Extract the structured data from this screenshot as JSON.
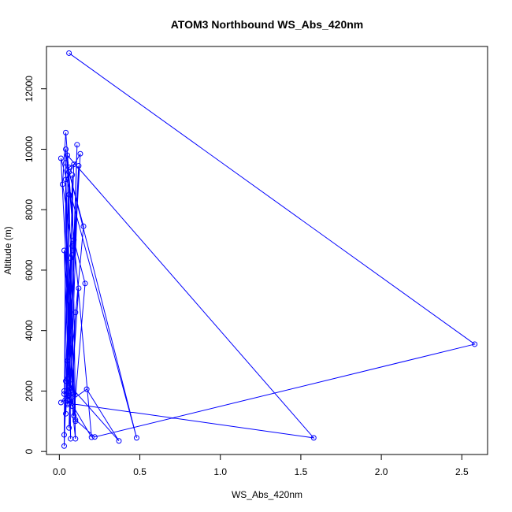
{
  "chart_data": {
    "type": "line",
    "title": "ATOM3 Northbound WS_Abs_420nm",
    "xlabel": "WS_Abs_420nm",
    "ylabel": "Altitude (m)",
    "xlim": [
      -0.08,
      2.66
    ],
    "ylim": [
      -100,
      13400
    ],
    "xticks": [
      0.0,
      0.5,
      1.0,
      1.5,
      2.0,
      2.5
    ],
    "xtick_labels": [
      "0.0",
      "0.5",
      "1.0",
      "1.5",
      "2.0",
      "2.5"
    ],
    "yticks": [
      0,
      2000,
      4000,
      6000,
      8000,
      10000,
      12000
    ],
    "ytick_labels": [
      "0",
      "2000",
      "4000",
      "6000",
      "8000",
      "10000",
      "12000"
    ],
    "grid": false,
    "series": [
      {
        "color": "#0000ff",
        "points": [
          [
            0.06,
            13180
          ],
          [
            2.58,
            3550
          ],
          [
            0.22,
            480
          ],
          [
            0.1,
            1050
          ],
          [
            0.03,
            6650
          ],
          [
            0.07,
            420
          ],
          [
            0.05,
            9800
          ],
          [
            1.58,
            450
          ],
          [
            0.05,
            1600
          ],
          [
            0.17,
            2060
          ],
          [
            0.37,
            350
          ],
          [
            0.04,
            2330
          ],
          [
            0.07,
            2230
          ],
          [
            0.05,
            1700
          ],
          [
            0.08,
            1500
          ],
          [
            0.1,
            4600
          ],
          [
            0.12,
            5400
          ],
          [
            0.06,
            780
          ],
          [
            0.11,
            10150
          ],
          [
            0.06,
            2100
          ],
          [
            0.03,
            1900
          ],
          [
            0.08,
            6800
          ],
          [
            0.02,
            8840
          ],
          [
            0.04,
            10550
          ],
          [
            0.09,
            7000
          ],
          [
            0.16,
            5560
          ],
          [
            0.09,
            1180
          ],
          [
            0.01,
            9700
          ],
          [
            0.48,
            450
          ],
          [
            0.06,
            9250
          ],
          [
            0.15,
            7450
          ],
          [
            0.05,
            1550
          ],
          [
            0.06,
            9400
          ],
          [
            0.09,
            9500
          ],
          [
            0.03,
            180
          ],
          [
            0.04,
            9550
          ],
          [
            0.06,
            1850
          ],
          [
            0.08,
            9150
          ],
          [
            0.1,
            1000
          ],
          [
            0.04,
            9000
          ],
          [
            0.13,
            9850
          ],
          [
            0.05,
            2400
          ],
          [
            0.04,
            10000
          ],
          [
            0.2,
            470
          ],
          [
            0.03,
            2000
          ],
          [
            0.06,
            8500
          ],
          [
            0.1,
            420
          ],
          [
            0.05,
            3000
          ],
          [
            0.08,
            6500
          ],
          [
            0.04,
            1250
          ],
          [
            0.07,
            6400
          ],
          [
            0.03,
            550
          ],
          [
            0.12,
            9450
          ],
          [
            0.07,
            2100
          ],
          [
            0.01,
            1620
          ],
          [
            0.09,
            1900
          ]
        ]
      }
    ]
  }
}
